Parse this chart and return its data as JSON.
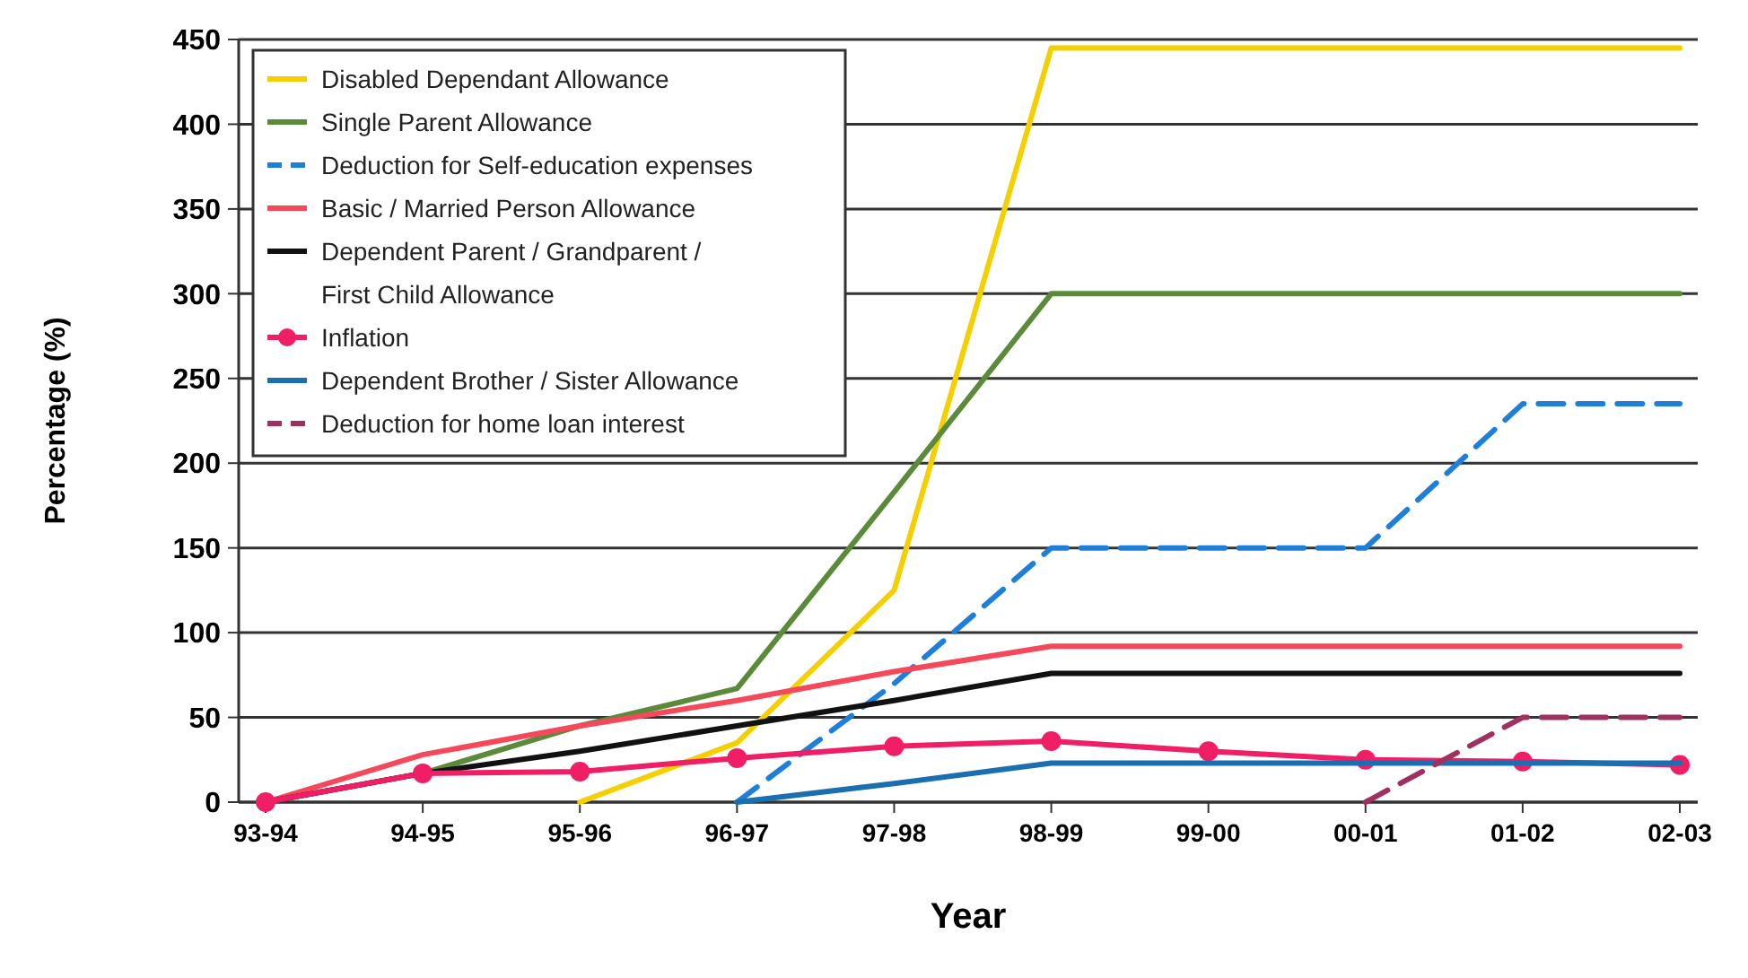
{
  "chart_data": {
    "type": "line",
    "xlabel": "Year",
    "ylabel": "Percentage (%)",
    "categories": [
      "93-94",
      "94-95",
      "95-96",
      "96-97",
      "97-98",
      "98-99",
      "99-00",
      "00-01",
      "01-02",
      "02-03"
    ],
    "ylim": [
      0,
      450
    ],
    "yticks": [
      0,
      50,
      100,
      150,
      200,
      250,
      300,
      350,
      400,
      450
    ],
    "grid": "y",
    "legend": "top left",
    "series": [
      {
        "name": "Disabled Dependant Allowance",
        "color": "#f5d000",
        "line_style": "solid",
        "marker": "none",
        "values": [
          null,
          null,
          0,
          35,
          125,
          445,
          445,
          445,
          445,
          445
        ]
      },
      {
        "name": "Single Parent Allowance",
        "color": "#5a8a3a",
        "line_style": "solid",
        "marker": "none",
        "values": [
          0,
          17,
          45,
          67,
          183,
          300,
          300,
          300,
          300,
          300
        ]
      },
      {
        "name": "Deduction for Self-education expenses",
        "color": "#1e7fd8",
        "line_style": "dashed",
        "marker": "none",
        "values": [
          null,
          null,
          null,
          0,
          70,
          150,
          150,
          150,
          235,
          235
        ]
      },
      {
        "name": "Basic / Married Person Allowance",
        "color": "#f5485a",
        "line_style": "solid",
        "marker": "none",
        "values": [
          0,
          28,
          45,
          60,
          77,
          92,
          92,
          92,
          92,
          92
        ]
      },
      {
        "name": "Dependent Parent / Grandparent / First Child Allowance",
        "color": "#111111",
        "line_style": "solid",
        "marker": "none",
        "values": [
          0,
          17,
          30,
          45,
          60,
          76,
          76,
          76,
          76,
          76
        ]
      },
      {
        "name": "Inflation",
        "color": "#f01e64",
        "line_style": "solid",
        "marker": "circle",
        "values": [
          0,
          17,
          18,
          26,
          33,
          36,
          30,
          25,
          24,
          22
        ]
      },
      {
        "name": "Dependent Brother / Sister Allowance",
        "color": "#1a6fb0",
        "line_style": "solid",
        "marker": "none",
        "values": [
          null,
          null,
          null,
          0,
          11,
          23,
          23,
          23,
          23,
          23
        ]
      },
      {
        "name": "Deduction for home loan interest",
        "color": "#a03060",
        "line_style": "dashed",
        "marker": "none",
        "values": [
          null,
          null,
          null,
          null,
          null,
          null,
          null,
          0,
          50,
          50
        ]
      }
    ]
  }
}
